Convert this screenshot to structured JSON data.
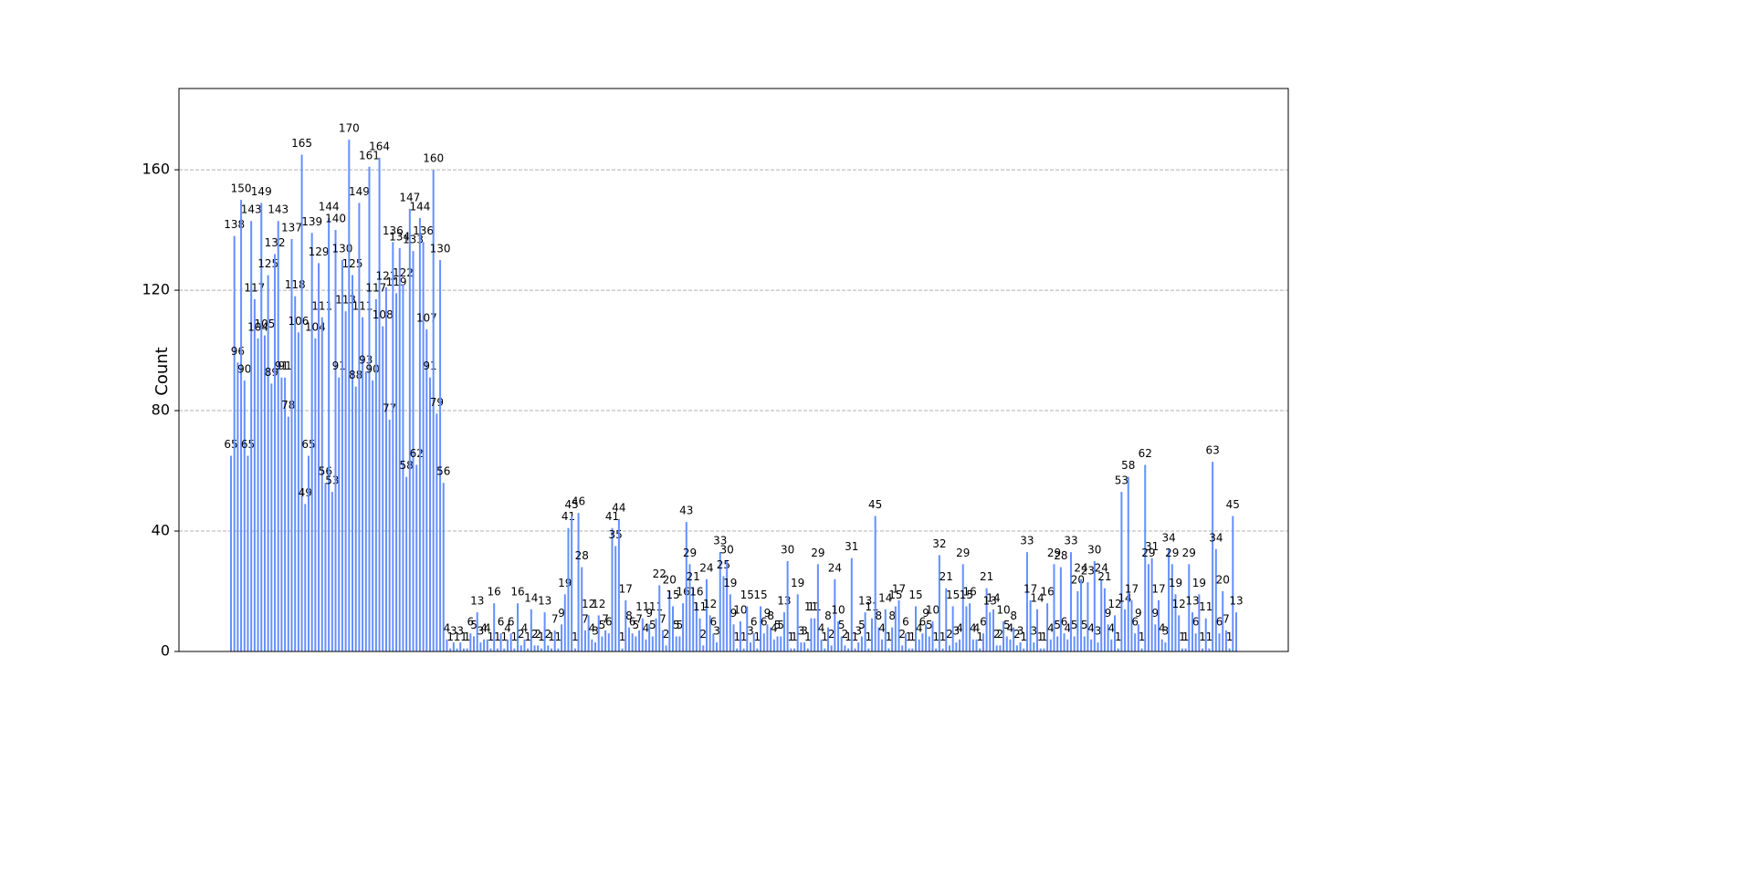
{
  "chart_data": {
    "type": "bar",
    "y_label": "Count",
    "color": "#648fff",
    "values": [
      65,
      138,
      96,
      150,
      90,
      65,
      143,
      117,
      104,
      149,
      105,
      125,
      89,
      132,
      143,
      91,
      91,
      78,
      137,
      118,
      106,
      165,
      49,
      65,
      139,
      104,
      129,
      111,
      56,
      144,
      53,
      140,
      91,
      130,
      113,
      170,
      125,
      88,
      149,
      111,
      93,
      161,
      90,
      117,
      164,
      108,
      121,
      77,
      136,
      119,
      134,
      122,
      58,
      147,
      133,
      62,
      144,
      136,
      107,
      91,
      160,
      79,
      130,
      56,
      4,
      1,
      3,
      1,
      3,
      1,
      1,
      6,
      5,
      13,
      3,
      4,
      4,
      1,
      16,
      1,
      6,
      1,
      4,
      6,
      1,
      16,
      2,
      4,
      1,
      14,
      2,
      2,
      1,
      13,
      2,
      1,
      7,
      1,
      9,
      19,
      41,
      45,
      1,
      46,
      28,
      7,
      12,
      4,
      3,
      12,
      5,
      7,
      6,
      41,
      35,
      44,
      1,
      17,
      8,
      6,
      5,
      7,
      11,
      4,
      9,
      5,
      11,
      22,
      7,
      2,
      20,
      15,
      5,
      5,
      16,
      43,
      29,
      21,
      16,
      11,
      2,
      24,
      12,
      6,
      3,
      33,
      25,
      30,
      19,
      9,
      1,
      10,
      1,
      15,
      3,
      6,
      1,
      15,
      6,
      9,
      8,
      4,
      5,
      5,
      13,
      30,
      1,
      1,
      19,
      3,
      3,
      1,
      11,
      11,
      29,
      4,
      1,
      8,
      2,
      24,
      10,
      5,
      2,
      1,
      31,
      1,
      3,
      5,
      13,
      1,
      11,
      45,
      8,
      4,
      14,
      1,
      8,
      15,
      17,
      2,
      6,
      1,
      1,
      15,
      4,
      6,
      9,
      5,
      10,
      1,
      32,
      1,
      21,
      2,
      15,
      3,
      4,
      29,
      15,
      16,
      4,
      4,
      1,
      6,
      21,
      13,
      14,
      2,
      2,
      10,
      5,
      4,
      8,
      2,
      3,
      1,
      33,
      17,
      3,
      14,
      1,
      1,
      16,
      4,
      29,
      5,
      28,
      6,
      4,
      33,
      5,
      20,
      24,
      5,
      23,
      4,
      30,
      3,
      24,
      21,
      9,
      4,
      12,
      1,
      53,
      14,
      58,
      17,
      6,
      9,
      1,
      62,
      29,
      31,
      9,
      17,
      4,
      3,
      34,
      29,
      19,
      12,
      1,
      1,
      29,
      13,
      6,
      19,
      1,
      11,
      1,
      63,
      34,
      6,
      20,
      7,
      1,
      45,
      13
    ],
    "ylim": [
      0,
      187
    ],
    "yticks": [
      0,
      40,
      80,
      120,
      160
    ],
    "grid": true
  }
}
